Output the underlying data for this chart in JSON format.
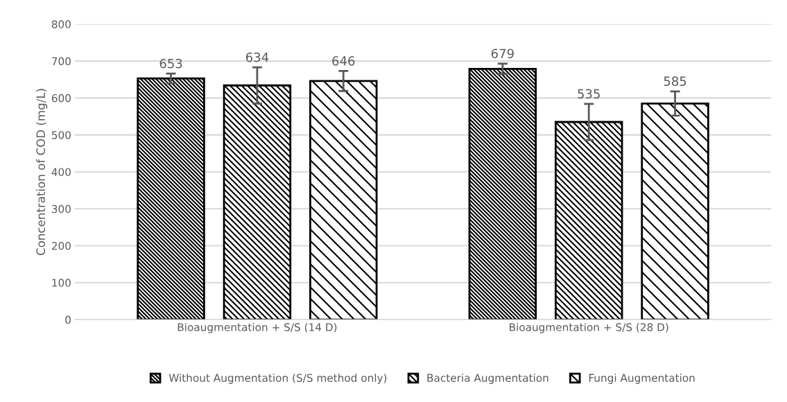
{
  "chart_data": {
    "type": "bar",
    "ylabel": "Concentration of COD (mg/L)",
    "categories": [
      "Bioaugmentation + S/S (14 D)",
      "Bioaugmentation + S/S (28 D)"
    ],
    "series": [
      {
        "name": "Without Augmentation (S/S method only)",
        "color": "#000000",
        "values": [
          653,
          679
        ],
        "errors": [
          13,
          14
        ]
      },
      {
        "name": "Bacteria Augmentation",
        "color": "#000000",
        "values": [
          634,
          535
        ],
        "errors": [
          49,
          49
        ]
      },
      {
        "name": "Fungi Augmentation",
        "color": "#000000",
        "values": [
          646,
          585
        ],
        "errors": [
          27,
          33
        ]
      }
    ],
    "ylim": [
      0,
      800
    ],
    "yticks": [
      0,
      100,
      200,
      300,
      400,
      500,
      600,
      700,
      800
    ],
    "grid": "y",
    "legend": "bottom",
    "data_labels": true
  }
}
